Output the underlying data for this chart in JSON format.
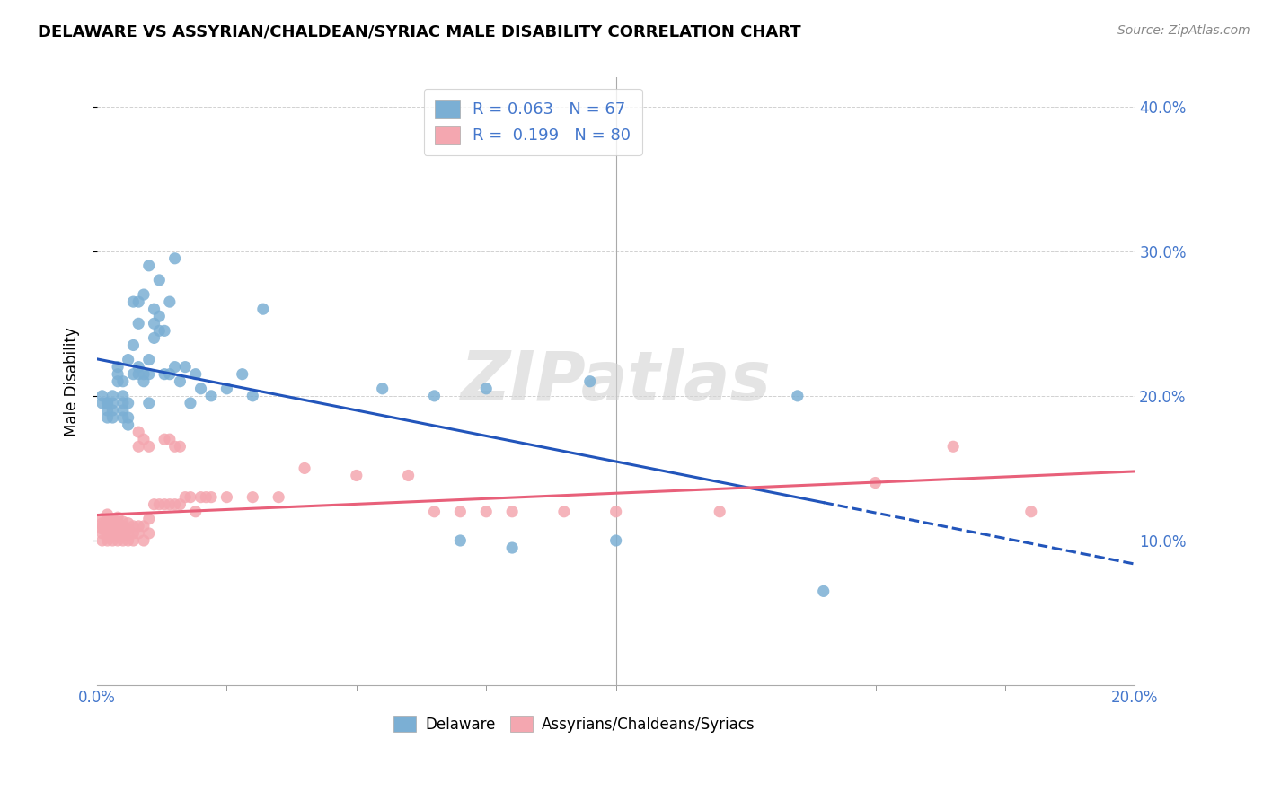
{
  "title": "DELAWARE VS ASSYRIAN/CHALDEAN/SYRIAC MALE DISABILITY CORRELATION CHART",
  "source": "Source: ZipAtlas.com",
  "ylabel": "Male Disability",
  "legend_label_blue": "Delaware",
  "legend_label_pink": "Assyrians/Chaldeans/Syriacs",
  "blue_R": "0.063",
  "blue_N": "67",
  "pink_R": "0.199",
  "pink_N": "80",
  "blue_color": "#7BAFD4",
  "pink_color": "#F4A7B0",
  "blue_line_color": "#2255BB",
  "pink_line_color": "#E8607A",
  "watermark": "ZIPatlas",
  "xmin": 0.0,
  "xmax": 0.2,
  "ymin": 0.0,
  "ymax": 0.42,
  "ytick_color": "#4477CC",
  "xtick_label_left": "0.0%",
  "xtick_label_right": "20.0%",
  "blue_scatter_x": [
    0.001,
    0.001,
    0.002,
    0.002,
    0.002,
    0.002,
    0.003,
    0.003,
    0.003,
    0.003,
    0.004,
    0.004,
    0.004,
    0.005,
    0.005,
    0.005,
    0.005,
    0.005,
    0.006,
    0.006,
    0.006,
    0.006,
    0.007,
    0.007,
    0.007,
    0.008,
    0.008,
    0.008,
    0.008,
    0.009,
    0.009,
    0.009,
    0.01,
    0.01,
    0.01,
    0.01,
    0.011,
    0.011,
    0.011,
    0.012,
    0.012,
    0.012,
    0.013,
    0.013,
    0.014,
    0.014,
    0.015,
    0.015,
    0.016,
    0.017,
    0.018,
    0.019,
    0.02,
    0.022,
    0.025,
    0.028,
    0.03,
    0.032,
    0.055,
    0.065,
    0.07,
    0.075,
    0.08,
    0.095,
    0.1,
    0.135,
    0.14
  ],
  "blue_scatter_y": [
    0.195,
    0.2,
    0.185,
    0.19,
    0.195,
    0.195,
    0.185,
    0.19,
    0.195,
    0.2,
    0.21,
    0.215,
    0.22,
    0.185,
    0.19,
    0.195,
    0.2,
    0.21,
    0.18,
    0.185,
    0.195,
    0.225,
    0.215,
    0.235,
    0.265,
    0.215,
    0.22,
    0.25,
    0.265,
    0.21,
    0.215,
    0.27,
    0.195,
    0.215,
    0.225,
    0.29,
    0.24,
    0.25,
    0.26,
    0.245,
    0.255,
    0.28,
    0.215,
    0.245,
    0.215,
    0.265,
    0.22,
    0.295,
    0.21,
    0.22,
    0.195,
    0.215,
    0.205,
    0.2,
    0.205,
    0.215,
    0.2,
    0.26,
    0.205,
    0.2,
    0.1,
    0.205,
    0.095,
    0.21,
    0.1,
    0.2,
    0.065
  ],
  "pink_scatter_x": [
    0.001,
    0.001,
    0.001,
    0.001,
    0.001,
    0.001,
    0.002,
    0.002,
    0.002,
    0.002,
    0.002,
    0.002,
    0.002,
    0.002,
    0.003,
    0.003,
    0.003,
    0.003,
    0.003,
    0.003,
    0.004,
    0.004,
    0.004,
    0.004,
    0.004,
    0.004,
    0.005,
    0.005,
    0.005,
    0.005,
    0.005,
    0.006,
    0.006,
    0.006,
    0.006,
    0.007,
    0.007,
    0.007,
    0.008,
    0.008,
    0.008,
    0.008,
    0.009,
    0.009,
    0.009,
    0.01,
    0.01,
    0.01,
    0.011,
    0.012,
    0.013,
    0.013,
    0.014,
    0.014,
    0.015,
    0.015,
    0.016,
    0.016,
    0.017,
    0.018,
    0.019,
    0.02,
    0.021,
    0.022,
    0.025,
    0.03,
    0.035,
    0.04,
    0.05,
    0.06,
    0.065,
    0.07,
    0.075,
    0.08,
    0.09,
    0.1,
    0.12,
    0.15,
    0.165,
    0.18
  ],
  "pink_scatter_y": [
    0.1,
    0.105,
    0.108,
    0.11,
    0.112,
    0.115,
    0.1,
    0.102,
    0.105,
    0.108,
    0.11,
    0.112,
    0.115,
    0.118,
    0.1,
    0.103,
    0.105,
    0.108,
    0.112,
    0.115,
    0.1,
    0.103,
    0.106,
    0.11,
    0.113,
    0.116,
    0.1,
    0.103,
    0.106,
    0.11,
    0.113,
    0.1,
    0.104,
    0.108,
    0.112,
    0.1,
    0.105,
    0.11,
    0.105,
    0.11,
    0.165,
    0.175,
    0.1,
    0.11,
    0.17,
    0.105,
    0.115,
    0.165,
    0.125,
    0.125,
    0.125,
    0.17,
    0.125,
    0.17,
    0.125,
    0.165,
    0.125,
    0.165,
    0.13,
    0.13,
    0.12,
    0.13,
    0.13,
    0.13,
    0.13,
    0.13,
    0.13,
    0.15,
    0.145,
    0.145,
    0.12,
    0.12,
    0.12,
    0.12,
    0.12,
    0.12,
    0.12,
    0.14,
    0.165,
    0.12
  ]
}
